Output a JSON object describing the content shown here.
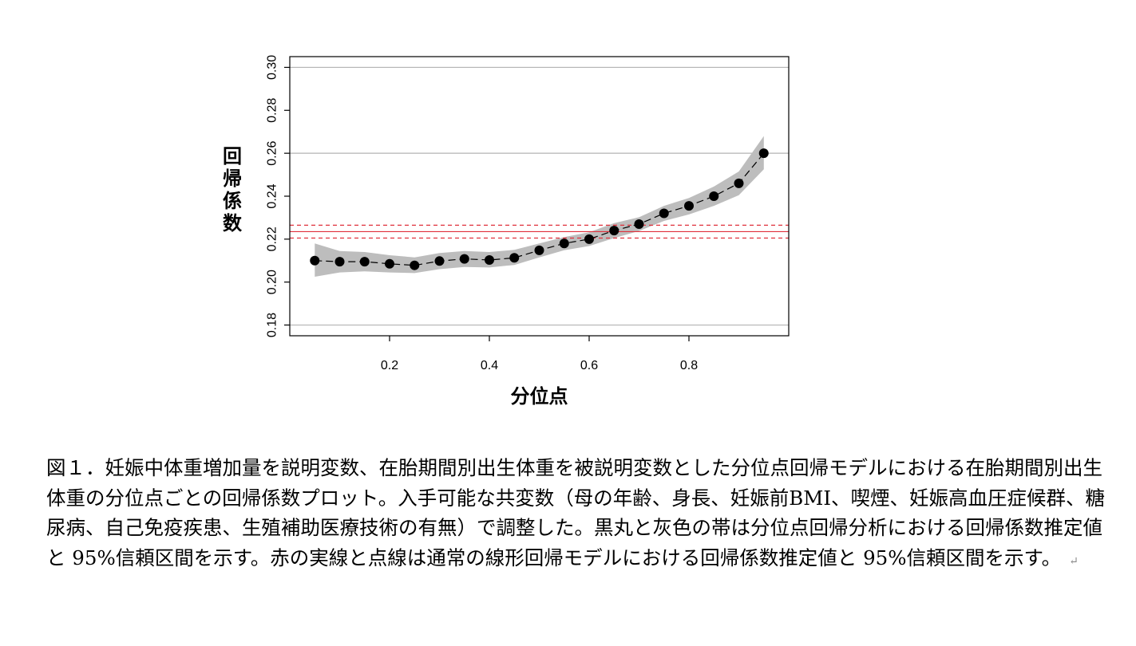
{
  "chart_data": {
    "type": "line",
    "title": "",
    "xlabel": "分位点",
    "ylabel": "回帰係数",
    "xlim": [
      0.0,
      1.0
    ],
    "ylim": [
      0.175,
      0.305
    ],
    "x_ticks": [
      0.2,
      0.4,
      0.6,
      0.8
    ],
    "x_tick_labels": [
      "0.2",
      "0.4",
      "0.6",
      "0.8"
    ],
    "y_ticks": [
      0.18,
      0.2,
      0.22,
      0.24,
      0.26,
      0.28,
      0.3
    ],
    "y_tick_labels": [
      "0.18",
      "0.20",
      "0.22",
      "0.24",
      "0.26",
      "0.28",
      "0.30"
    ],
    "gridlines_y": [
      0.18,
      0.26,
      0.3
    ],
    "series": [
      {
        "style": "dashed line with black filled circles",
        "color": "#000000",
        "x": [
          0.05,
          0.1,
          0.15,
          0.2,
          0.25,
          0.3,
          0.35,
          0.4,
          0.45,
          0.5,
          0.55,
          0.6,
          0.65,
          0.7,
          0.75,
          0.8,
          0.85,
          0.9,
          0.95
        ],
        "values": [
          0.21,
          0.2095,
          0.2095,
          0.2085,
          0.2078,
          0.2098,
          0.2108,
          0.2103,
          0.2113,
          0.2148,
          0.218,
          0.22,
          0.224,
          0.227,
          0.232,
          0.2355,
          0.24,
          0.246,
          0.26
        ],
        "ci_lower": [
          0.2025,
          0.2045,
          0.205,
          0.2045,
          0.2042,
          0.206,
          0.207,
          0.2068,
          0.208,
          0.2115,
          0.2148,
          0.2168,
          0.2205,
          0.2238,
          0.2285,
          0.2315,
          0.2355,
          0.2405,
          0.2525
        ],
        "ci_upper": [
          0.218,
          0.2145,
          0.214,
          0.2125,
          0.2115,
          0.2135,
          0.2145,
          0.214,
          0.215,
          0.218,
          0.221,
          0.2232,
          0.2275,
          0.2302,
          0.2355,
          0.2392,
          0.2445,
          0.2515,
          0.268
        ],
        "ci_color": "#bdbdbd"
      }
    ],
    "reference_lines": [
      {
        "kind": "estimate",
        "style": "solid",
        "color": "#e0303c",
        "y": 0.2235
      },
      {
        "kind": "ci_upper",
        "style": "dashed",
        "color": "#e0303c",
        "y": 0.2265
      },
      {
        "kind": "ci_lower",
        "style": "dashed",
        "color": "#e0303c",
        "y": 0.2205
      }
    ],
    "grid": "horizontal-partial",
    "legend": "none"
  },
  "caption": {
    "text": "図１．妊娠中体重増加量を説明変数、在胎期間別出生体重を被説明変数とした分位点回帰モデルにおける在胎期間別出生体重の分位点ごとの回帰係数プロット。入手可能な共変数（母の年齢、身長、妊娠前BMI、喫煙、妊娠高血圧症候群、糖尿病、自己免疫疾患、生殖補助医療技術の有無）で調整した。黒丸と灰色の帯は分位点回帰分析における回帰係数推定値と 95%信頼区間を示す。赤の実線と点線は通常の線形回帰モデルにおける回帰係数推定値と 95%信頼区間を示す。",
    "paragraph_mark": "↵"
  }
}
